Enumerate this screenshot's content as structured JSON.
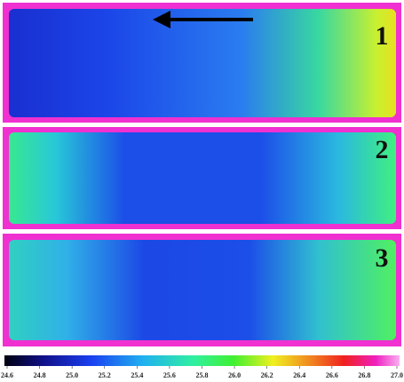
{
  "panels": [
    {
      "label": "1"
    },
    {
      "label": "2"
    },
    {
      "label": "3"
    }
  ],
  "colorbar": {
    "lim": [
      24.6,
      27.0
    ],
    "ticks": [
      24.6,
      24.8,
      {
        "value": 25.0,
        "label": "25.0"
      },
      25.2,
      25.4,
      25.6,
      25.8,
      {
        "value": 26.0,
        "label": "26.0"
      },
      26.2,
      26.4,
      26.6,
      26.8,
      {
        "value": 27.0,
        "label": "27.0"
      }
    ]
  }
}
